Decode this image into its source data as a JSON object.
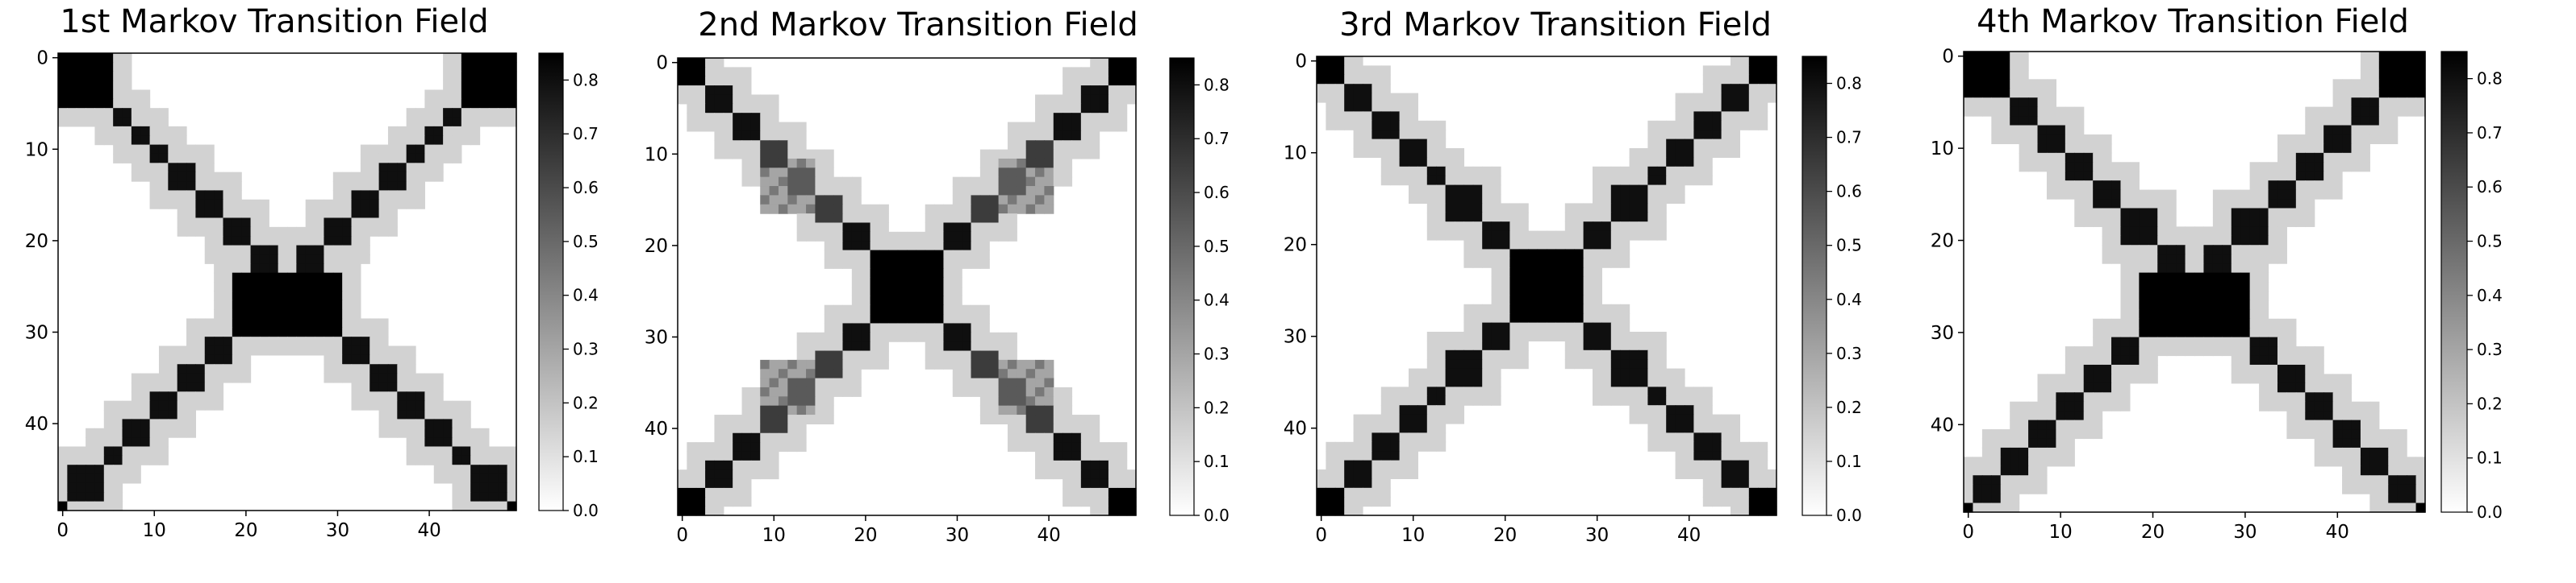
{
  "chart_data": [
    {
      "type": "heatmap",
      "title": "1st Markov Transition Field",
      "x_ticks": [
        "0",
        "10",
        "20",
        "30",
        "40"
      ],
      "y_ticks": [
        "0",
        "10",
        "20",
        "30",
        "40"
      ],
      "colorbar_ticks": [
        "0.0",
        "0.1",
        "0.2",
        "0.3",
        "0.4",
        "0.5",
        "0.6",
        "0.7",
        "0.8"
      ],
      "colormap": "gray_r",
      "vmin": 0.0,
      "vmax": 0.85,
      "grid_size": 50,
      "pattern": "diagonal-cross",
      "dark_blocks": [
        {
          "start": 0,
          "end": 6,
          "value": 0.85
        },
        {
          "start": 6,
          "end": 8,
          "value": 0.8
        },
        {
          "start": 8,
          "end": 10,
          "value": 0.8
        },
        {
          "start": 10,
          "end": 12,
          "value": 0.8
        },
        {
          "start": 12,
          "end": 15,
          "value": 0.8
        },
        {
          "start": 15,
          "end": 18,
          "value": 0.8
        },
        {
          "start": 18,
          "end": 21,
          "value": 0.8
        },
        {
          "start": 21,
          "end": 24,
          "value": 0.8
        },
        {
          "start": 24,
          "end": 31,
          "value": 0.85
        },
        {
          "start": 31,
          "end": 34,
          "value": 0.8
        },
        {
          "start": 34,
          "end": 37,
          "value": 0.8
        },
        {
          "start": 37,
          "end": 40,
          "value": 0.8
        },
        {
          "start": 40,
          "end": 43,
          "value": 0.8
        },
        {
          "start": 43,
          "end": 45,
          "value": 0.8
        },
        {
          "start": 45,
          "end": 49,
          "value": 0.8
        },
        {
          "start": 49,
          "end": 50,
          "value": 0.85
        }
      ],
      "halo_value": 0.15,
      "extra_blocks": []
    },
    {
      "type": "heatmap",
      "title": "2nd Markov Transition Field",
      "x_ticks": [
        "0",
        "10",
        "20",
        "30",
        "40"
      ],
      "y_ticks": [
        "0",
        "10",
        "20",
        "30",
        "40"
      ],
      "colorbar_ticks": [
        "0.0",
        "0.1",
        "0.2",
        "0.3",
        "0.4",
        "0.5",
        "0.6",
        "0.7",
        "0.8"
      ],
      "colormap": "gray_r",
      "vmin": 0.0,
      "vmax": 0.85,
      "grid_size": 50,
      "pattern": "diagonal-cross",
      "dark_blocks": [
        {
          "start": 0,
          "end": 3,
          "value": 0.85
        },
        {
          "start": 3,
          "end": 6,
          "value": 0.8
        },
        {
          "start": 6,
          "end": 9,
          "value": 0.8
        },
        {
          "start": 9,
          "end": 12,
          "value": 0.65
        },
        {
          "start": 12,
          "end": 15,
          "value": 0.55
        },
        {
          "start": 15,
          "end": 18,
          "value": 0.65
        },
        {
          "start": 18,
          "end": 21,
          "value": 0.8
        },
        {
          "start": 21,
          "end": 29,
          "value": 0.85
        },
        {
          "start": 29,
          "end": 32,
          "value": 0.8
        },
        {
          "start": 32,
          "end": 35,
          "value": 0.65
        },
        {
          "start": 35,
          "end": 38,
          "value": 0.55
        },
        {
          "start": 38,
          "end": 41,
          "value": 0.65
        },
        {
          "start": 41,
          "end": 44,
          "value": 0.8
        },
        {
          "start": 44,
          "end": 47,
          "value": 0.8
        },
        {
          "start": 47,
          "end": 50,
          "value": 0.85
        }
      ],
      "halo_value": 0.15,
      "extra_blocks": [
        {
          "r0": 11,
          "r1": 17,
          "c0": 9,
          "c1": 15,
          "value": 0.3
        },
        {
          "r0": 33,
          "r1": 39,
          "c0": 35,
          "c1": 41,
          "value": 0.3
        },
        {
          "r0": 11,
          "r1": 17,
          "c0": 35,
          "c1": 41,
          "value": 0.3
        },
        {
          "r0": 33,
          "r1": 39,
          "c0": 9,
          "c1": 15,
          "value": 0.3
        }
      ]
    },
    {
      "type": "heatmap",
      "title": "3rd Markov Transition Field",
      "x_ticks": [
        "0",
        "10",
        "20",
        "30",
        "40"
      ],
      "y_ticks": [
        "0",
        "10",
        "20",
        "30",
        "40"
      ],
      "colorbar_ticks": [
        "0.0",
        "0.1",
        "0.2",
        "0.3",
        "0.4",
        "0.5",
        "0.6",
        "0.7",
        "0.8"
      ],
      "colormap": "gray_r",
      "vmin": 0.0,
      "vmax": 0.85,
      "grid_size": 50,
      "pattern": "diagonal-cross",
      "dark_blocks": [
        {
          "start": 0,
          "end": 3,
          "value": 0.85
        },
        {
          "start": 3,
          "end": 6,
          "value": 0.8
        },
        {
          "start": 6,
          "end": 9,
          "value": 0.8
        },
        {
          "start": 9,
          "end": 12,
          "value": 0.8
        },
        {
          "start": 12,
          "end": 14,
          "value": 0.8
        },
        {
          "start": 14,
          "end": 18,
          "value": 0.8
        },
        {
          "start": 18,
          "end": 21,
          "value": 0.8
        },
        {
          "start": 21,
          "end": 29,
          "value": 0.85
        },
        {
          "start": 29,
          "end": 32,
          "value": 0.8
        },
        {
          "start": 32,
          "end": 36,
          "value": 0.8
        },
        {
          "start": 36,
          "end": 38,
          "value": 0.8
        },
        {
          "start": 38,
          "end": 41,
          "value": 0.8
        },
        {
          "start": 41,
          "end": 44,
          "value": 0.8
        },
        {
          "start": 44,
          "end": 47,
          "value": 0.8
        },
        {
          "start": 47,
          "end": 50,
          "value": 0.85
        }
      ],
      "halo_value": 0.15,
      "extra_blocks": []
    },
    {
      "type": "heatmap",
      "title": "4th Markov Transition Field",
      "x_ticks": [
        "0",
        "10",
        "20",
        "30",
        "40"
      ],
      "y_ticks": [
        "0",
        "10",
        "20",
        "30",
        "40"
      ],
      "colorbar_ticks": [
        "0.0",
        "0.1",
        "0.2",
        "0.3",
        "0.4",
        "0.5",
        "0.6",
        "0.7",
        "0.8"
      ],
      "colormap": "gray_r",
      "vmin": 0.0,
      "vmax": 0.85,
      "grid_size": 50,
      "pattern": "diagonal-cross",
      "dark_blocks": [
        {
          "start": 0,
          "end": 5,
          "value": 0.85
        },
        {
          "start": 5,
          "end": 8,
          "value": 0.8
        },
        {
          "start": 8,
          "end": 11,
          "value": 0.8
        },
        {
          "start": 11,
          "end": 14,
          "value": 0.8
        },
        {
          "start": 14,
          "end": 17,
          "value": 0.8
        },
        {
          "start": 17,
          "end": 21,
          "value": 0.8
        },
        {
          "start": 21,
          "end": 24,
          "value": 0.8
        },
        {
          "start": 24,
          "end": 31,
          "value": 0.85
        },
        {
          "start": 31,
          "end": 34,
          "value": 0.8
        },
        {
          "start": 34,
          "end": 37,
          "value": 0.8
        },
        {
          "start": 37,
          "end": 40,
          "value": 0.8
        },
        {
          "start": 40,
          "end": 43,
          "value": 0.8
        },
        {
          "start": 43,
          "end": 46,
          "value": 0.8
        },
        {
          "start": 46,
          "end": 49,
          "value": 0.8
        },
        {
          "start": 49,
          "end": 50,
          "value": 0.85
        }
      ],
      "halo_value": 0.15,
      "extra_blocks": []
    }
  ]
}
